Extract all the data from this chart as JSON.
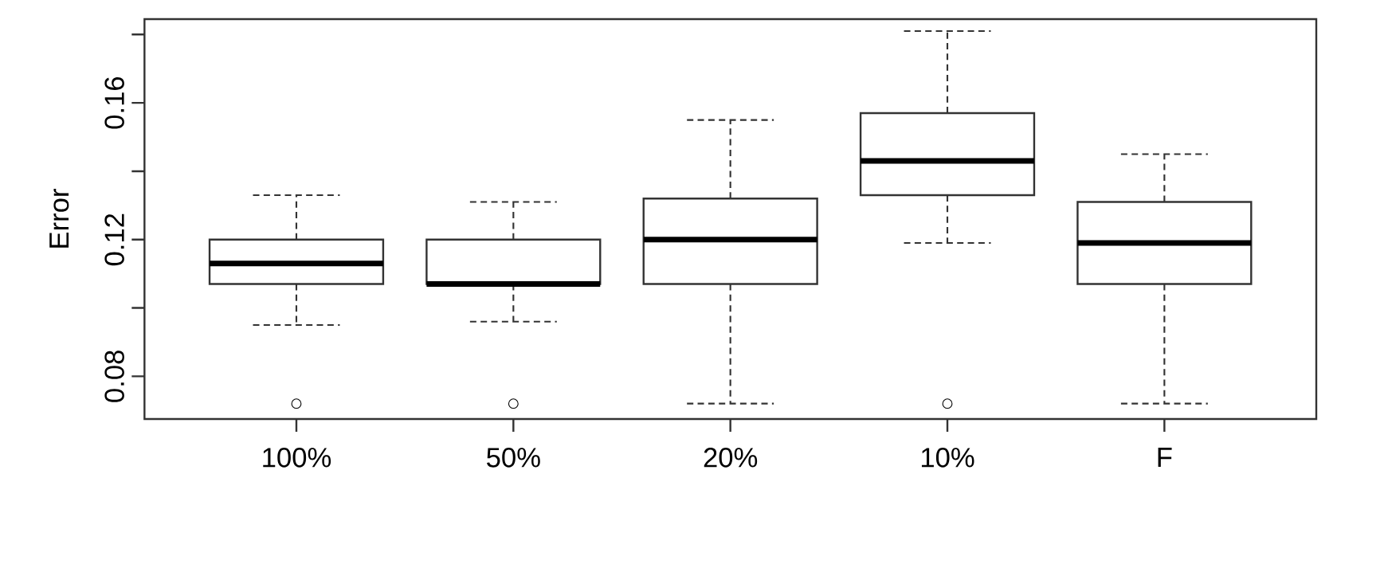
{
  "chart_data": {
    "type": "box",
    "ylabel": "Error",
    "categories": [
      "100%",
      "50%",
      "20%",
      "10%",
      "F"
    ],
    "boxes": [
      {
        "low": 0.095,
        "q1": 0.107,
        "median": 0.113,
        "q3": 0.12,
        "high": 0.133,
        "outliers": [
          0.072
        ]
      },
      {
        "low": 0.096,
        "q1": 0.107,
        "median": 0.107,
        "q3": 0.12,
        "high": 0.131,
        "outliers": [
          0.072
        ]
      },
      {
        "low": 0.072,
        "q1": 0.107,
        "median": 0.12,
        "q3": 0.132,
        "high": 0.155
      },
      {
        "low": 0.119,
        "q1": 0.133,
        "median": 0.143,
        "q3": 0.157,
        "high": 0.181,
        "outliers": [
          0.072
        ]
      },
      {
        "low": 0.072,
        "q1": 0.107,
        "median": 0.119,
        "q3": 0.131,
        "high": 0.145
      }
    ],
    "ylim": [
      0.0675,
      0.1845
    ],
    "yticks": [
      0.08,
      {
        "value": 0.1,
        "label": null
      },
      0.12,
      {
        "value": 0.14,
        "label": null
      },
      0.16,
      {
        "value": 0.18,
        "label": null
      }
    ]
  }
}
